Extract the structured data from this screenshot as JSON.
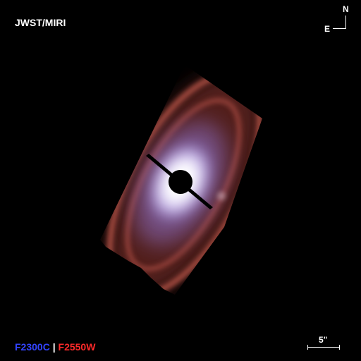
{
  "instrument_label": "JWST/MIRI",
  "compass": {
    "north": "N",
    "east": "E"
  },
  "filters": {
    "blue": {
      "text": "F2300C",
      "color": "#3344ff"
    },
    "separator": " | ",
    "red": {
      "text": "F2550W",
      "color": "#ff2a2a"
    }
  },
  "scale_bar": {
    "label": "5\""
  },
  "colors": {
    "background": "#000000",
    "core": "#ffffff",
    "halo": "#b9aaf0",
    "disk_red": "#8a3b32",
    "ring": "#b04a40"
  }
}
